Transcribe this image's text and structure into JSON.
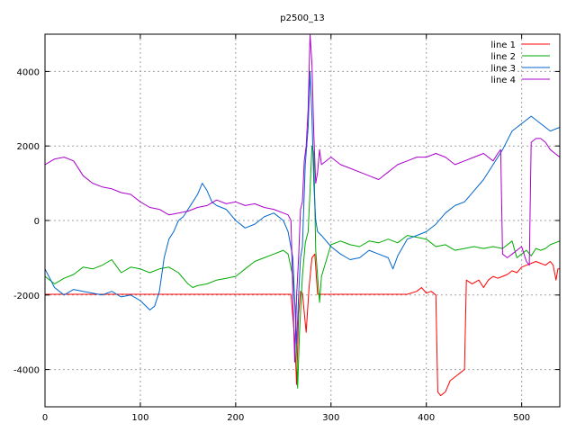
{
  "chart_data": {
    "type": "line",
    "title": "p2500_13",
    "xlabel": "",
    "ylabel": "",
    "xlim": [
      0,
      540
    ],
    "ylim": [
      -5000,
      5000
    ],
    "x_ticks": [
      0,
      100,
      200,
      300,
      400,
      500
    ],
    "y_ticks": [
      -4000,
      -2000,
      0,
      2000,
      4000
    ],
    "x_tick_labels": [
      "0",
      "100",
      "200",
      "300",
      "400",
      "500"
    ],
    "y_tick_labels": [
      "-4000",
      "-2000",
      "0",
      "2000",
      "4000"
    ],
    "grid": true,
    "legend_position": "top-right",
    "series": [
      {
        "name": "line 1",
        "color": "#ff0000",
        "points": [
          [
            0,
            -1980
          ],
          [
            50,
            -1980
          ],
          [
            100,
            -1980
          ],
          [
            150,
            -1980
          ],
          [
            200,
            -1980
          ],
          [
            250,
            -1980
          ],
          [
            258,
            -1980
          ],
          [
            262,
            -3200
          ],
          [
            264,
            -4400
          ],
          [
            266,
            -2500
          ],
          [
            268,
            -1900
          ],
          [
            270,
            -1950
          ],
          [
            274,
            -3000
          ],
          [
            277,
            -1800
          ],
          [
            280,
            -1000
          ],
          [
            283,
            -900
          ],
          [
            286,
            -1980
          ],
          [
            300,
            -1980
          ],
          [
            350,
            -1980
          ],
          [
            380,
            -1980
          ],
          [
            390,
            -1900
          ],
          [
            395,
            -1800
          ],
          [
            400,
            -1950
          ],
          [
            405,
            -1900
          ],
          [
            410,
            -2000
          ],
          [
            412,
            -4600
          ],
          [
            415,
            -4700
          ],
          [
            420,
            -4600
          ],
          [
            425,
            -4300
          ],
          [
            430,
            -4200
          ],
          [
            435,
            -4100
          ],
          [
            440,
            -4000
          ],
          [
            442,
            -1600
          ],
          [
            448,
            -1700
          ],
          [
            455,
            -1600
          ],
          [
            460,
            -1800
          ],
          [
            465,
            -1600
          ],
          [
            470,
            -1500
          ],
          [
            475,
            -1550
          ],
          [
            480,
            -1500
          ],
          [
            485,
            -1450
          ],
          [
            490,
            -1350
          ],
          [
            495,
            -1400
          ],
          [
            500,
            -1250
          ],
          [
            505,
            -1200
          ],
          [
            510,
            -1150
          ],
          [
            515,
            -1100
          ],
          [
            520,
            -1150
          ],
          [
            525,
            -1200
          ],
          [
            530,
            -1100
          ],
          [
            533,
            -1200
          ],
          [
            536,
            -1600
          ],
          [
            538,
            -1300
          ],
          [
            540,
            -1300
          ]
        ]
      },
      {
        "name": "line 2",
        "color": "#00aa00",
        "points": [
          [
            0,
            -1500
          ],
          [
            10,
            -1700
          ],
          [
            20,
            -1550
          ],
          [
            30,
            -1450
          ],
          [
            40,
            -1250
          ],
          [
            50,
            -1300
          ],
          [
            60,
            -1200
          ],
          [
            70,
            -1050
          ],
          [
            80,
            -1400
          ],
          [
            90,
            -1250
          ],
          [
            100,
            -1300
          ],
          [
            110,
            -1400
          ],
          [
            120,
            -1300
          ],
          [
            130,
            -1250
          ],
          [
            140,
            -1400
          ],
          [
            150,
            -1700
          ],
          [
            155,
            -1800
          ],
          [
            160,
            -1750
          ],
          [
            170,
            -1700
          ],
          [
            180,
            -1600
          ],
          [
            190,
            -1550
          ],
          [
            200,
            -1500
          ],
          [
            210,
            -1300
          ],
          [
            220,
            -1100
          ],
          [
            230,
            -1000
          ],
          [
            240,
            -900
          ],
          [
            250,
            -800
          ],
          [
            255,
            -900
          ],
          [
            260,
            -1500
          ],
          [
            263,
            -2500
          ],
          [
            265,
            -4500
          ],
          [
            267,
            -3000
          ],
          [
            270,
            -1500
          ],
          [
            273,
            -600
          ],
          [
            276,
            -300
          ],
          [
            278,
            800
          ],
          [
            280,
            2000
          ],
          [
            282,
            1800
          ],
          [
            284,
            -800
          ],
          [
            286,
            -1500
          ],
          [
            288,
            -2200
          ],
          [
            290,
            -1500
          ],
          [
            300,
            -650
          ],
          [
            310,
            -550
          ],
          [
            320,
            -650
          ],
          [
            330,
            -700
          ],
          [
            340,
            -550
          ],
          [
            350,
            -600
          ],
          [
            360,
            -500
          ],
          [
            370,
            -600
          ],
          [
            380,
            -400
          ],
          [
            390,
            -450
          ],
          [
            400,
            -500
          ],
          [
            410,
            -700
          ],
          [
            420,
            -650
          ],
          [
            430,
            -800
          ],
          [
            440,
            -750
          ],
          [
            450,
            -700
          ],
          [
            460,
            -750
          ],
          [
            470,
            -700
          ],
          [
            480,
            -750
          ],
          [
            490,
            -550
          ],
          [
            495,
            -1000
          ],
          [
            500,
            -900
          ],
          [
            505,
            -800
          ],
          [
            510,
            -950
          ],
          [
            515,
            -750
          ],
          [
            520,
            -800
          ],
          [
            525,
            -750
          ],
          [
            530,
            -650
          ],
          [
            535,
            -600
          ],
          [
            540,
            -550
          ]
        ]
      },
      {
        "name": "line 3",
        "color": "#0066cc",
        "points": [
          [
            0,
            -1300
          ],
          [
            10,
            -1800
          ],
          [
            20,
            -2000
          ],
          [
            30,
            -1850
          ],
          [
            40,
            -1900
          ],
          [
            50,
            -1950
          ],
          [
            60,
            -2000
          ],
          [
            70,
            -1900
          ],
          [
            80,
            -2050
          ],
          [
            90,
            -2000
          ],
          [
            100,
            -2150
          ],
          [
            110,
            -2400
          ],
          [
            115,
            -2300
          ],
          [
            120,
            -1900
          ],
          [
            125,
            -1000
          ],
          [
            130,
            -500
          ],
          [
            135,
            -300
          ],
          [
            140,
            0
          ],
          [
            145,
            100
          ],
          [
            150,
            300
          ],
          [
            155,
            500
          ],
          [
            160,
            700
          ],
          [
            165,
            1000
          ],
          [
            170,
            800
          ],
          [
            175,
            500
          ],
          [
            180,
            400
          ],
          [
            190,
            300
          ],
          [
            200,
            0
          ],
          [
            210,
            -200
          ],
          [
            220,
            -100
          ],
          [
            230,
            100
          ],
          [
            240,
            200
          ],
          [
            250,
            0
          ],
          [
            255,
            -300
          ],
          [
            260,
            -1000
          ],
          [
            262,
            -2200
          ],
          [
            264,
            -3300
          ],
          [
            266,
            -2000
          ],
          [
            268,
            -1000
          ],
          [
            270,
            -700
          ],
          [
            273,
            1500
          ],
          [
            276,
            2500
          ],
          [
            278,
            4000
          ],
          [
            280,
            2800
          ],
          [
            282,
            1000
          ],
          [
            284,
            0
          ],
          [
            286,
            -300
          ],
          [
            290,
            -400
          ],
          [
            300,
            -700
          ],
          [
            310,
            -900
          ],
          [
            320,
            -1050
          ],
          [
            330,
            -1000
          ],
          [
            340,
            -800
          ],
          [
            350,
            -900
          ],
          [
            360,
            -1000
          ],
          [
            365,
            -1300
          ],
          [
            370,
            -950
          ],
          [
            380,
            -500
          ],
          [
            390,
            -400
          ],
          [
            400,
            -300
          ],
          [
            410,
            -100
          ],
          [
            420,
            200
          ],
          [
            430,
            400
          ],
          [
            440,
            500
          ],
          [
            450,
            800
          ],
          [
            460,
            1100
          ],
          [
            470,
            1500
          ],
          [
            480,
            1900
          ],
          [
            490,
            2400
          ],
          [
            500,
            2600
          ],
          [
            510,
            2800
          ],
          [
            520,
            2600
          ],
          [
            530,
            2400
          ],
          [
            540,
            2500
          ]
        ]
      },
      {
        "name": "line 4",
        "color": "#aa00cc",
        "points": [
          [
            0,
            1500
          ],
          [
            10,
            1650
          ],
          [
            20,
            1700
          ],
          [
            30,
            1600
          ],
          [
            40,
            1200
          ],
          [
            50,
            1000
          ],
          [
            60,
            900
          ],
          [
            70,
            850
          ],
          [
            80,
            750
          ],
          [
            90,
            700
          ],
          [
            100,
            500
          ],
          [
            110,
            350
          ],
          [
            120,
            300
          ],
          [
            130,
            150
          ],
          [
            140,
            200
          ],
          [
            150,
            250
          ],
          [
            160,
            350
          ],
          [
            170,
            400
          ],
          [
            180,
            550
          ],
          [
            190,
            450
          ],
          [
            200,
            500
          ],
          [
            210,
            400
          ],
          [
            220,
            450
          ],
          [
            230,
            350
          ],
          [
            240,
            300
          ],
          [
            250,
            200
          ],
          [
            255,
            150
          ],
          [
            258,
            0
          ],
          [
            260,
            -2000
          ],
          [
            262,
            -3800
          ],
          [
            264,
            -2000
          ],
          [
            266,
            -1000
          ],
          [
            268,
            300
          ],
          [
            270,
            500
          ],
          [
            272,
            1600
          ],
          [
            274,
            2000
          ],
          [
            276,
            3000
          ],
          [
            278,
            5000
          ],
          [
            280,
            4200
          ],
          [
            282,
            2300
          ],
          [
            284,
            1000
          ],
          [
            286,
            1300
          ],
          [
            288,
            1900
          ],
          [
            290,
            1500
          ],
          [
            300,
            1700
          ],
          [
            310,
            1500
          ],
          [
            320,
            1400
          ],
          [
            330,
            1300
          ],
          [
            340,
            1200
          ],
          [
            350,
            1100
          ],
          [
            360,
            1300
          ],
          [
            370,
            1500
          ],
          [
            380,
            1600
          ],
          [
            390,
            1700
          ],
          [
            400,
            1700
          ],
          [
            410,
            1800
          ],
          [
            420,
            1700
          ],
          [
            430,
            1500
          ],
          [
            440,
            1600
          ],
          [
            450,
            1700
          ],
          [
            460,
            1800
          ],
          [
            470,
            1600
          ],
          [
            475,
            1800
          ],
          [
            478,
            1900
          ],
          [
            480,
            -900
          ],
          [
            485,
            -1000
          ],
          [
            490,
            -900
          ],
          [
            495,
            -800
          ],
          [
            500,
            -700
          ],
          [
            505,
            -1100
          ],
          [
            508,
            -1200
          ],
          [
            510,
            2100
          ],
          [
            515,
            2200
          ],
          [
            520,
            2200
          ],
          [
            525,
            2100
          ],
          [
            530,
            1900
          ],
          [
            535,
            1800
          ],
          [
            540,
            1700
          ]
        ]
      }
    ]
  }
}
